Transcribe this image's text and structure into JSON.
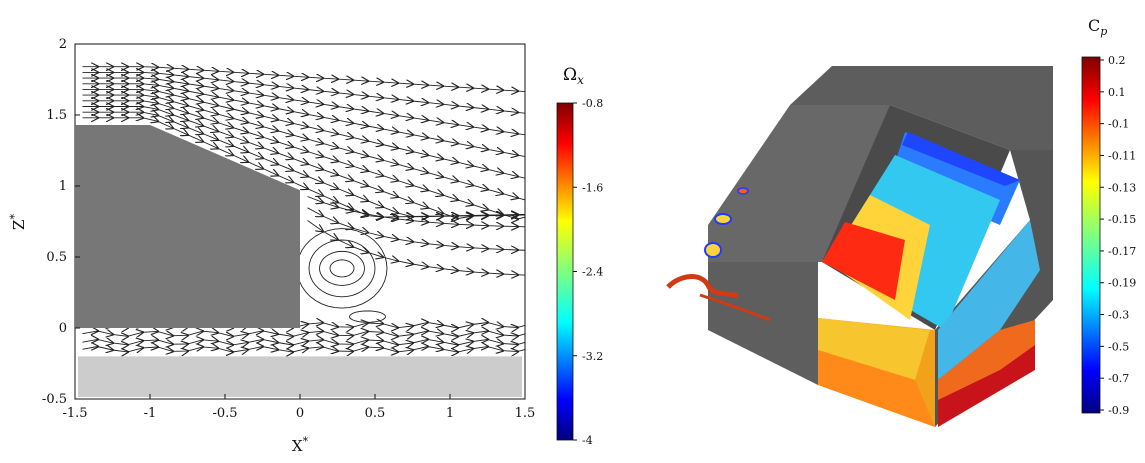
{
  "chart_data": [
    {
      "type": "streamline",
      "xlabel": "X*",
      "ylabel": "Z*",
      "xlim": [
        -1.5,
        1.5
      ],
      "ylim": [
        -0.5,
        2
      ],
      "xticks": [
        "-1.5",
        "-1",
        "-0.5",
        "0",
        "0.5",
        "1",
        "1.5"
      ],
      "yticks": [
        "-0.5",
        "0",
        "0.5",
        "1",
        "1.5",
        "2"
      ],
      "body_outline": [
        [
          -1.5,
          0
        ],
        [
          -1.5,
          1.43
        ],
        [
          -1.0,
          1.43
        ],
        [
          0.0,
          0.97
        ],
        [
          0.0,
          0
        ]
      ],
      "ground": {
        "x": [
          -1.48,
          1.48
        ],
        "z": [
          -0.5,
          -0.2
        ]
      },
      "recirculation_center": [
        0.28,
        0.42
      ]
    },
    {
      "type": "colorbar",
      "title": "Ω_x",
      "ticks": [
        "-0.8",
        "-1.6",
        "-2.4",
        "-3.2",
        "-4"
      ]
    },
    {
      "type": "surface-contour",
      "title": "C_p",
      "colorbar_ticks": [
        "0.2",
        "0.1",
        "-0.1",
        "-0.11",
        "-0.13",
        "-0.15",
        "-0.17",
        "-0.19",
        "-0.3",
        "-0.5",
        "-0.7",
        "-0.9"
      ]
    }
  ]
}
